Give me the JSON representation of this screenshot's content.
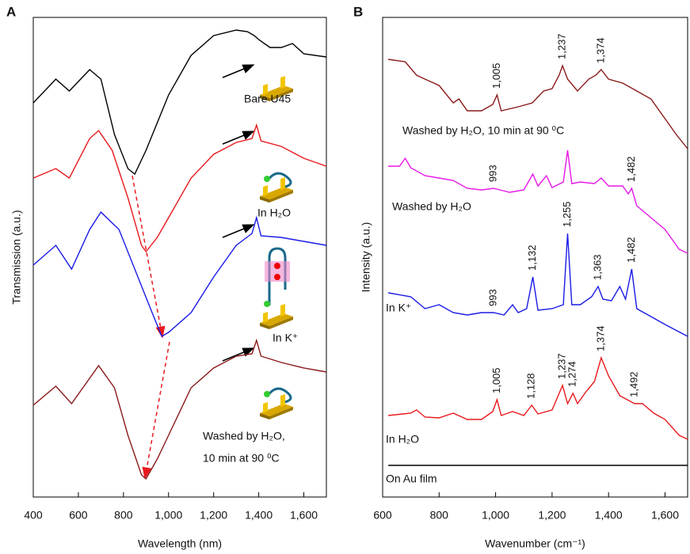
{
  "chart_data": [
    {
      "type": "line",
      "panel": "A",
      "ylabel": "Transmission (a.u.)",
      "xlabel": "Wavelength (nm)",
      "xlim": [
        400,
        1700
      ],
      "ylim": [
        0,
        606
      ],
      "xticks": [
        400,
        600,
        800,
        {
          "value": 1000,
          "label": "1,000"
        },
        {
          "value": 1200,
          "label": "1,200"
        },
        {
          "value": 1400,
          "label": "1,400"
        },
        {
          "value": 1600,
          "label": "1,600"
        }
      ],
      "series": [
        {
          "label_lines": [
            "Bare U45"
          ],
          "color": "#000000",
          "x": [
            400,
            500,
            560,
            650,
            700,
            760,
            820,
            850,
            900,
            1000,
            1100,
            1200,
            1300,
            1350,
            1380,
            1400,
            1450,
            1500,
            1550,
            1600,
            1700
          ],
          "values": [
            498,
            528,
            513,
            540,
            528,
            458,
            415,
            408,
            438,
            508,
            558,
            583,
            590,
            588,
            583,
            578,
            568,
            568,
            573,
            560,
            556
          ]
        },
        {
          "label_lines": [
            "In H₂O"
          ],
          "color": "#e8191e",
          "x": [
            400,
            500,
            560,
            650,
            690,
            750,
            820,
            880,
            900,
            950,
            1000,
            1100,
            1200,
            1300,
            1370,
            1390,
            1410,
            1500,
            1600,
            1700
          ],
          "values": [
            403,
            415,
            403,
            453,
            463,
            438,
            378,
            318,
            310,
            328,
            353,
            403,
            433,
            448,
            453,
            470,
            450,
            443,
            428,
            418
          ]
        },
        {
          "label_lines": [
            "In K⁺"
          ],
          "color": "#1a1ae6",
          "x": [
            400,
            500,
            570,
            650,
            700,
            780,
            850,
            920,
            970,
            1000,
            1100,
            1200,
            1300,
            1370,
            1390,
            1410,
            1500,
            1600,
            1700
          ],
          "values": [
            293,
            318,
            288,
            338,
            360,
            338,
            288,
            238,
            203,
            208,
            233,
            278,
            318,
            333,
            353,
            330,
            328,
            323,
            318
          ]
        },
        {
          "label_lines": [
            "Washed by H₂O,",
            "10 min at 90 ⁰C"
          ],
          "color": "#8b1a1a",
          "x": [
            400,
            500,
            570,
            690,
            760,
            820,
            880,
            900,
            950,
            1000,
            1100,
            1200,
            1300,
            1370,
            1390,
            1410,
            1500,
            1600,
            1700
          ],
          "values": [
            116,
            140,
            118,
            166,
            138,
            78,
            28,
            23,
            48,
            78,
            138,
            163,
            178,
            181,
            198,
            178,
            170,
            163,
            158
          ]
        }
      ]
    },
    {
      "type": "line",
      "panel": "B",
      "ylabel": "Intensity (a.u.)",
      "xlabel": "Wavenumber (cm⁻¹)",
      "xlim": [
        600,
        1680
      ],
      "ylim": [
        0,
        606
      ],
      "xticks": [
        600,
        800,
        {
          "value": 1000,
          "label": "1,000"
        },
        {
          "value": 1200,
          "label": "1,200"
        },
        {
          "value": 1400,
          "label": "1,400"
        },
        {
          "value": 1600,
          "label": "1,600"
        }
      ],
      "series": [
        {
          "name": "Washed by H₂O, 10 min at 90 ⁰C",
          "color": "#8b1a1a",
          "x": [
            620,
            680,
            720,
            750,
            800,
            850,
            870,
            900,
            950,
            990,
            1005,
            1020,
            1080,
            1130,
            1170,
            1200,
            1225,
            1237,
            1255,
            1290,
            1330,
            1355,
            1374,
            1400,
            1450,
            1500,
            1550,
            1600,
            1640,
            1680
          ],
          "values": [
            553,
            550,
            533,
            528,
            520,
            498,
            503,
            488,
            488,
            496,
            508,
            488,
            493,
            498,
            513,
            516,
            533,
            545,
            528,
            513,
            528,
            533,
            540,
            528,
            523,
            513,
            503,
            478,
            458,
            440
          ],
          "peaks": [
            {
              "x": 1005,
              "label": "1,005"
            },
            {
              "x": 1237,
              "label": "1,237"
            },
            {
              "x": 1374,
              "label": "1,374"
            }
          ]
        },
        {
          "name": "Washed by H₂O",
          "color": "#e619e6",
          "x": [
            620,
            660,
            680,
            700,
            750,
            800,
            850,
            900,
            950,
            993,
            1050,
            1100,
            1132,
            1150,
            1180,
            1200,
            1240,
            1255,
            1270,
            1300,
            1350,
            1374,
            1400,
            1450,
            1470,
            1482,
            1500,
            1550,
            1600,
            1650,
            1680
          ],
          "values": [
            418,
            418,
            428,
            416,
            406,
            403,
            400,
            390,
            388,
            390,
            385,
            388,
            408,
            393,
            406,
            391,
            398,
            438,
            396,
            398,
            396,
            403,
            393,
            393,
            383,
            390,
            368,
            353,
            338,
            313,
            308
          ],
          "peaks": [
            {
              "x": 993,
              "label": "993"
            },
            {
              "x": 1482,
              "label": "1,482"
            }
          ]
        },
        {
          "name": "In K⁺",
          "color": "#1a1ae6",
          "x": [
            620,
            700,
            750,
            800,
            850,
            900,
            950,
            993,
            1030,
            1060,
            1080,
            1110,
            1132,
            1150,
            1200,
            1240,
            1255,
            1270,
            1300,
            1340,
            1363,
            1380,
            1410,
            1440,
            1460,
            1482,
            1500,
            1550,
            1600,
            1680
          ],
          "values": [
            258,
            253,
            238,
            243,
            233,
            230,
            233,
            233,
            230,
            243,
            233,
            238,
            278,
            236,
            238,
            243,
            333,
            243,
            243,
            253,
            266,
            250,
            248,
            266,
            250,
            288,
            238,
            228,
            218,
            203
          ],
          "peaks": [
            {
              "x": 993,
              "label": "993"
            },
            {
              "x": 1132,
              "label": "1,132"
            },
            {
              "x": 1255,
              "label": "1,255"
            },
            {
              "x": 1363,
              "label": "1,363"
            },
            {
              "x": 1482,
              "label": "1,482"
            }
          ]
        },
        {
          "name": "In H₂O",
          "color": "#e8191e",
          "x": [
            620,
            700,
            720,
            750,
            800,
            850,
            900,
            950,
            990,
            1005,
            1020,
            1060,
            1100,
            1128,
            1150,
            1200,
            1237,
            1255,
            1274,
            1290,
            1320,
            1350,
            1374,
            1400,
            1440,
            1492,
            1520,
            1560,
            1600,
            1650,
            1680
          ],
          "values": [
            103,
            106,
            110,
            101,
            100,
            106,
            98,
            98,
            108,
            123,
            103,
            108,
            103,
            116,
            105,
            110,
            141,
            118,
            131,
            118,
            133,
            146,
            176,
            153,
            128,
            118,
            118,
            106,
            98,
            78,
            73
          ],
          "peaks": [
            {
              "x": 1005,
              "label": "1,005"
            },
            {
              "x": 1128,
              "label": "1,128"
            },
            {
              "x": 1237,
              "label": "1,237"
            },
            {
              "x": 1274,
              "label": "1,274"
            },
            {
              "x": 1374,
              "label": "1,374"
            },
            {
              "x": 1492,
              "label": "1,492"
            }
          ]
        },
        {
          "name": "On Au film",
          "color": "#000000",
          "x": [
            620,
            1680
          ],
          "values": [
            40,
            40
          ],
          "peaks": []
        }
      ]
    }
  ]
}
